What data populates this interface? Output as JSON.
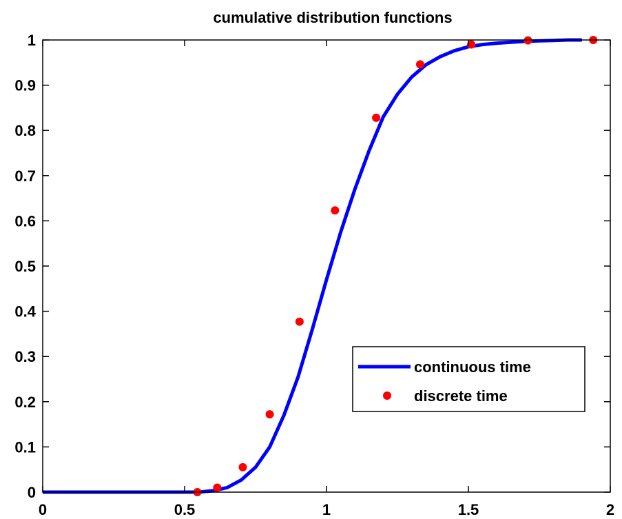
{
  "chart_data": {
    "type": "line",
    "title": "cumulative distribution functions",
    "xlabel": "",
    "ylabel": "",
    "xlim": [
      0,
      2
    ],
    "ylim": [
      0,
      1
    ],
    "xticks": [
      0,
      0.5,
      1,
      1.5,
      2
    ],
    "xtick_labels": [
      "0",
      "0.5",
      "1",
      "1.5",
      "2"
    ],
    "yticks": [
      0,
      0.1,
      0.2,
      0.3,
      0.4,
      0.5,
      0.6,
      0.7,
      0.8,
      0.9,
      1
    ],
    "ytick_labels": [
      "0",
      "0.1",
      "0.2",
      "0.3",
      "0.4",
      "0.5",
      "0.6",
      "0.7",
      "0.8",
      "0.9",
      "1"
    ],
    "grid": false,
    "legend_position": "lower-right",
    "series": [
      {
        "name": "continuous time",
        "type": "line",
        "color": "#0000ff",
        "x": [
          0,
          0.1,
          0.2,
          0.3,
          0.4,
          0.5,
          0.55,
          0.6,
          0.65,
          0.7,
          0.75,
          0.8,
          0.85,
          0.9,
          0.95,
          1.0,
          1.05,
          1.1,
          1.15,
          1.2,
          1.25,
          1.3,
          1.35,
          1.4,
          1.45,
          1.5,
          1.55,
          1.6,
          1.65,
          1.7,
          1.75,
          1.8,
          1.85,
          1.9
        ],
        "y": [
          0,
          0,
          0,
          0,
          0,
          0,
          0.0,
          0.003,
          0.01,
          0.027,
          0.055,
          0.1,
          0.17,
          0.255,
          0.36,
          0.47,
          0.575,
          0.67,
          0.755,
          0.83,
          0.88,
          0.918,
          0.945,
          0.963,
          0.976,
          0.985,
          0.99,
          0.993,
          0.995,
          0.997,
          0.998,
          0.999,
          1.0,
          1.0
        ]
      },
      {
        "name": "discrete time",
        "type": "scatter",
        "color": "#ff0000",
        "x": [
          0.545,
          0.615,
          0.705,
          0.8,
          0.905,
          1.03,
          1.175,
          1.33,
          1.51,
          1.71,
          1.94
        ],
        "y": [
          0.0,
          0.01,
          0.055,
          0.172,
          0.377,
          0.623,
          0.828,
          0.946,
          0.99,
          0.999,
          1.0
        ]
      }
    ]
  }
}
